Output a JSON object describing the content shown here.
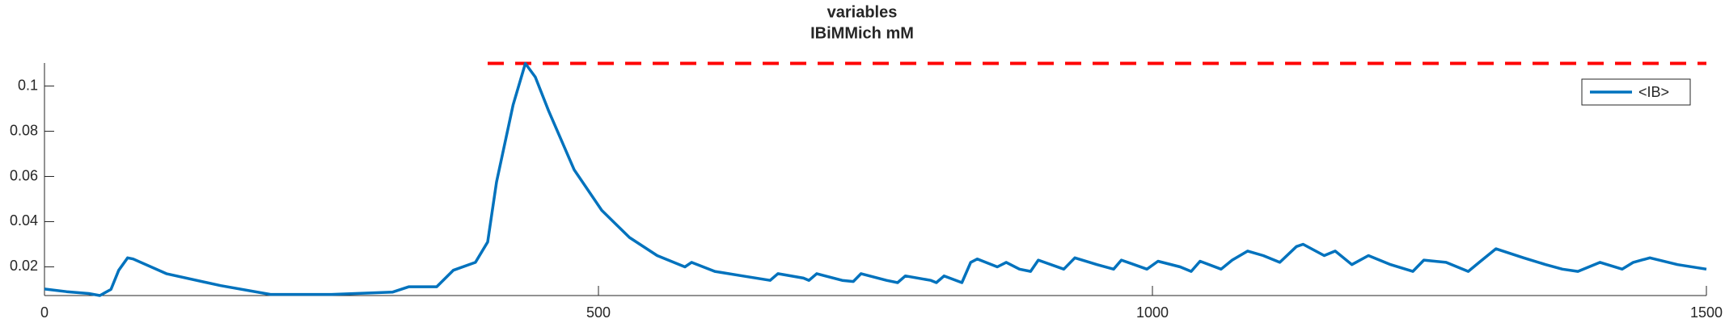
{
  "chart_data": {
    "type": "line",
    "title": "variables",
    "subtitle": "IBiMMich mM",
    "xlim": [
      0,
      1500
    ],
    "xticks": [
      0,
      500,
      1000,
      1500
    ],
    "ylim": [
      0.0073,
      0.1102
    ],
    "yticks": [
      0.02,
      0.04,
      0.06,
      0.08,
      0.1
    ],
    "legend": "upper-right",
    "series": [
      {
        "name": "<IB>",
        "color": "#0072bd",
        "x": [
          0,
          20,
          40,
          50,
          60,
          67,
          75,
          80,
          110,
          159,
          204,
          259,
          314,
          329,
          354,
          369,
          389,
          400,
          408,
          423,
          434,
          443,
          455,
          478,
          503,
          528,
          553,
          578,
          584,
          605,
          630,
          655,
          662,
          685,
          690,
          697,
          720,
          730,
          737,
          760,
          770,
          777,
          800,
          805,
          812,
          828,
          836,
          842,
          860,
          868,
          880,
          890,
          897,
          920,
          930,
          950,
          965,
          972,
          995,
          1005,
          1025,
          1035,
          1043,
          1062,
          1072,
          1086,
          1100,
          1115,
          1130,
          1136,
          1155,
          1165,
          1180,
          1195,
          1215,
          1235,
          1245,
          1265,
          1285,
          1295,
          1310,
          1335,
          1355,
          1370,
          1384,
          1404,
          1424,
          1434,
          1449,
          1474,
          1500
        ],
        "values": [
          0.0102,
          0.009,
          0.0082,
          0.0073,
          0.01,
          0.0185,
          0.024,
          0.0235,
          0.017,
          0.0117,
          0.0078,
          0.0078,
          0.0088,
          0.0112,
          0.0112,
          0.0185,
          0.022,
          0.031,
          0.0576,
          0.0917,
          0.11,
          0.104,
          0.089,
          0.063,
          0.045,
          0.033,
          0.025,
          0.02,
          0.022,
          0.018,
          0.016,
          0.014,
          0.017,
          0.015,
          0.014,
          0.017,
          0.014,
          0.0135,
          0.017,
          0.014,
          0.013,
          0.016,
          0.014,
          0.013,
          0.016,
          0.013,
          0.022,
          0.0235,
          0.02,
          0.022,
          0.019,
          0.018,
          0.023,
          0.019,
          0.024,
          0.021,
          0.019,
          0.023,
          0.019,
          0.0225,
          0.02,
          0.018,
          0.0225,
          0.019,
          0.023,
          0.027,
          0.025,
          0.022,
          0.029,
          0.03,
          0.025,
          0.027,
          0.021,
          0.025,
          0.021,
          0.018,
          0.023,
          0.022,
          0.018,
          0.022,
          0.028,
          0.024,
          0.021,
          0.019,
          0.018,
          0.022,
          0.019,
          0.022,
          0.024,
          0.021,
          0.019
        ]
      }
    ],
    "reference_line": {
      "y": 0.11,
      "x": [
        400,
        1500
      ],
      "color": "#ff0000"
    }
  }
}
